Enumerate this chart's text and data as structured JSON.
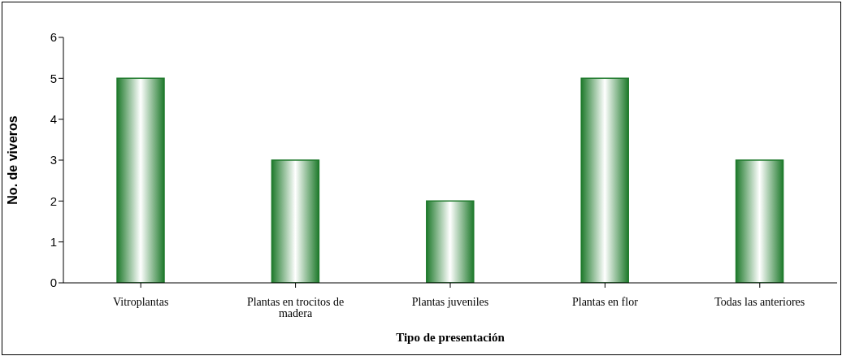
{
  "chart_data": {
    "type": "bar",
    "xlabel": "Tipo de presentación",
    "ylabel": "No. de viveros",
    "categories": [
      "Vitroplantas",
      "Plantas en trocitos de madera",
      "Plantas juveniles",
      "Plantas en flor",
      "Todas las anteriores"
    ],
    "values": [
      5,
      3,
      2,
      5,
      3
    ],
    "color": "#1f7a2c",
    "ylim": [
      0,
      6
    ],
    "yticks": [
      0,
      1,
      2,
      3,
      4,
      5,
      6
    ],
    "grid": false,
    "legend": false
  }
}
